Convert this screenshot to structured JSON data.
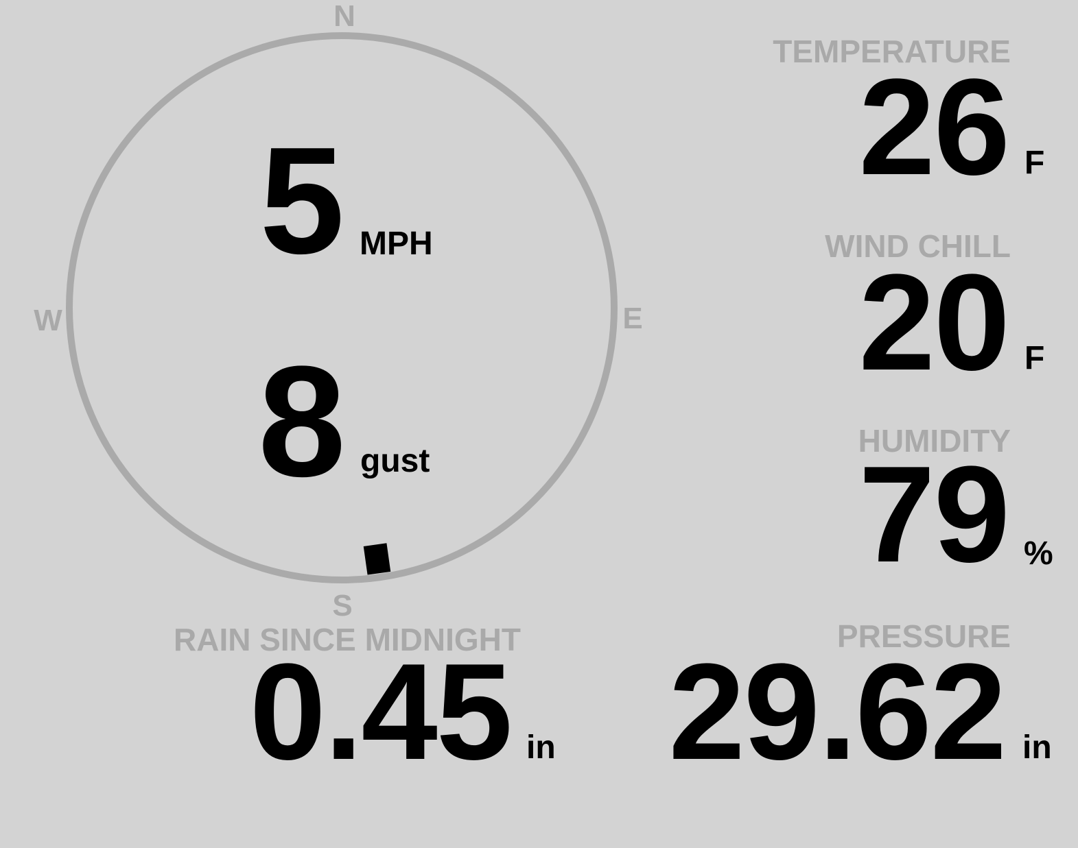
{
  "compass": {
    "north": "N",
    "south": "S",
    "east": "E",
    "west": "W",
    "wind_direction_deg": 172
  },
  "wind": {
    "speed": "5",
    "speed_unit": "MPH",
    "gust": "8",
    "gust_unit": "gust"
  },
  "temperature": {
    "label": "TEMPERATURE",
    "value": "26",
    "unit": "F"
  },
  "wind_chill": {
    "label": "WIND CHILL",
    "value": "20",
    "unit": "F"
  },
  "humidity": {
    "label": "HUMIDITY",
    "value": "79",
    "unit": "%"
  },
  "rain": {
    "label": "RAIN SINCE MIDNIGHT",
    "value": "0.45",
    "unit": "in"
  },
  "pressure": {
    "label": "PRESSURE",
    "value": "29.62",
    "unit": "in"
  },
  "colors": {
    "background": "#d3d3d3",
    "label": "#a9a9a9",
    "value": "#000000",
    "compass_ring": "#aaaaaa"
  }
}
